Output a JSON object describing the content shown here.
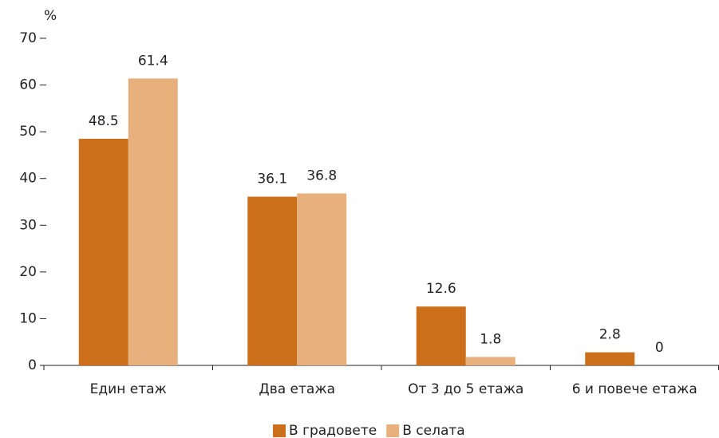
{
  "chart_data": {
    "type": "bar",
    "y_label": "%",
    "categories": [
      "Един етаж",
      "Два етажа",
      "От 3 до 5 етажа",
      "6 и повече етажа"
    ],
    "series": [
      {
        "name": "В градовете",
        "color": "#cc6f1a",
        "values": [
          48.5,
          36.1,
          12.6,
          2.8
        ]
      },
      {
        "name": "В селата",
        "color": "#e8b07c",
        "values": [
          61.4,
          36.8,
          1.8,
          0
        ]
      }
    ],
    "ylim": [
      0,
      70
    ],
    "yticks": [
      0,
      10,
      20,
      30,
      40,
      50,
      60,
      70
    ],
    "grid": false,
    "legend": "bottom"
  }
}
